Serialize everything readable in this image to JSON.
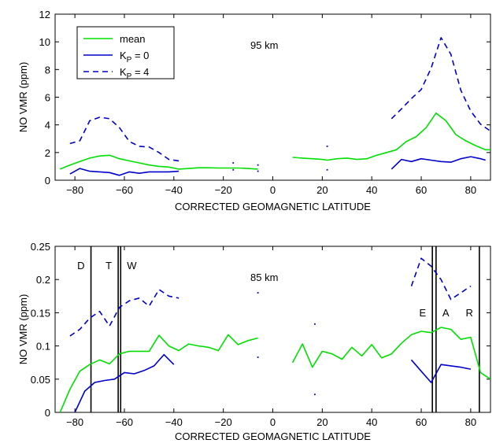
{
  "chart_data": [
    {
      "type": "line",
      "title": "",
      "annotation": "95 km",
      "xlabel": "CORRECTED GEOMAGNETIC LATITUDE",
      "ylabel": "NO VMR (ppm)",
      "xlim": [
        -88,
        88
      ],
      "ylim": [
        0,
        12
      ],
      "xticks": [
        -80,
        -60,
        -40,
        -20,
        0,
        20,
        40,
        60,
        80
      ],
      "yticks": [
        0,
        2,
        4,
        6,
        8,
        10,
        12
      ],
      "xtick_labels": [
        "−80",
        "−60",
        "−40",
        "−20",
        "0",
        "20",
        "40",
        "60",
        "80"
      ],
      "ytick_labels": [
        "0",
        "2",
        "4",
        "6",
        "8",
        "10",
        "12"
      ],
      "legend": {
        "placement": "top-left",
        "entries": [
          {
            "label": "mean",
            "series": "mean"
          },
          {
            "label": "K",
            "sub": "P",
            "suffix": " = 0",
            "series": "kp0"
          },
          {
            "label": "K",
            "sub": "P",
            "suffix": " = 4",
            "series": "kp4"
          }
        ]
      },
      "series": [
        {
          "id": "mean",
          "name": "mean",
          "color": "#00e000",
          "style": "solid",
          "segments": [
            {
              "x": [
                -86,
                -82,
                -78,
                -74,
                -70,
                -66,
                -62,
                -58,
                -54,
                -50,
                -46,
                -42,
                -38,
                -34,
                -30,
                -26,
                -22,
                -18,
                -14,
                -10,
                -6
              ],
              "y": [
                0.8,
                1.1,
                1.35,
                1.6,
                1.75,
                1.8,
                1.55,
                1.4,
                1.25,
                1.1,
                1.0,
                0.95,
                0.8,
                0.85,
                0.9,
                0.9,
                0.88,
                0.88,
                0.88,
                0.85,
                0.8
              ]
            },
            {
              "x": [
                8,
                12,
                16,
                20,
                22,
                26,
                30,
                34,
                38,
                42,
                46,
                50,
                54,
                58,
                62,
                66,
                70,
                74,
                78,
                82,
                86,
                88
              ],
              "y": [
                1.65,
                1.6,
                1.55,
                1.5,
                1.45,
                1.55,
                1.6,
                1.5,
                1.55,
                1.8,
                2.0,
                2.2,
                2.8,
                3.15,
                3.8,
                4.85,
                4.3,
                3.3,
                2.85,
                2.5,
                2.2,
                2.2
              ]
            }
          ]
        },
        {
          "id": "kp0",
          "name": "K_P = 0",
          "color": "#0000cc",
          "style": "solid",
          "segments": [
            {
              "x": [
                -82,
                -78,
                -74,
                -70,
                -66,
                -62,
                -58,
                -54,
                -50,
                -46,
                -42,
                -38
              ],
              "y": [
                0.45,
                0.85,
                0.65,
                0.6,
                0.55,
                0.35,
                0.6,
                0.5,
                0.6,
                0.6,
                0.6,
                0.65
              ]
            },
            {
              "x": [
                48,
                52,
                56,
                60,
                64,
                68,
                72,
                76,
                80,
                84,
                86
              ],
              "y": [
                0.8,
                1.5,
                1.35,
                1.55,
                1.45,
                1.35,
                1.3,
                1.55,
                1.7,
                1.55,
                1.45
              ]
            }
          ]
        },
        {
          "id": "kp4",
          "name": "K_P = 4",
          "color": "#0000cc",
          "style": "dashed",
          "segments": [
            {
              "x": [
                -82,
                -78,
                -74,
                -70,
                -66,
                -62,
                -58,
                -54,
                -50,
                -46,
                -42,
                -38
              ],
              "y": [
                2.65,
                2.85,
                4.3,
                4.55,
                4.45,
                3.8,
                2.8,
                2.45,
                2.4,
                2.0,
                1.5,
                1.4
              ]
            },
            {
              "x": [
                48,
                52,
                56,
                60,
                64,
                68,
                72,
                76,
                80,
                84,
                88
              ],
              "y": [
                4.45,
                5.15,
                5.9,
                6.55,
                8.1,
                10.3,
                9.1,
                6.5,
                5.0,
                4.05,
                3.55
              ]
            }
          ]
        }
      ],
      "scatter_points": [
        {
          "x": -16,
          "y": 1.25
        },
        {
          "x": -16,
          "y": 0.75
        },
        {
          "x": -6,
          "y": 1.1
        },
        {
          "x": -6,
          "y": 0.65
        },
        {
          "x": 22,
          "y": 2.45
        },
        {
          "x": 22,
          "y": 0.75
        }
      ],
      "grid": false
    },
    {
      "type": "line",
      "title": "",
      "annotation": "85 km",
      "xlabel": "CORRECTED GEOMAGNETIC LATITUDE",
      "ylabel": "NO VMR (ppm)",
      "xlim": [
        -88,
        88
      ],
      "ylim": [
        0,
        0.25
      ],
      "xticks": [
        -80,
        -60,
        -40,
        -20,
        0,
        20,
        40,
        60,
        80
      ],
      "yticks": [
        0,
        0.05,
        0.1,
        0.15,
        0.2,
        0.25
      ],
      "xtick_labels": [
        "−80",
        "−60",
        "−40",
        "−20",
        "0",
        "20",
        "40",
        "60",
        "80"
      ],
      "ytick_labels": [
        "0",
        "0.05",
        "0.1",
        "0.15",
        "0.2",
        "0.25"
      ],
      "series": [
        {
          "id": "mean",
          "name": "mean",
          "color": "#00e000",
          "style": "solid",
          "segments": [
            {
              "x": [
                -86,
                -82,
                -78,
                -74,
                -70,
                -66,
                -62,
                -58,
                -54,
                -50,
                -46,
                -42,
                -38,
                -34,
                -30,
                -26,
                -22,
                -18,
                -14,
                -10,
                -6
              ],
              "y": [
                0.0,
                0.035,
                0.062,
                0.072,
                0.079,
                0.073,
                0.088,
                0.092,
                0.092,
                0.092,
                0.116,
                0.1,
                0.093,
                0.103,
                0.1,
                0.098,
                0.093,
                0.117,
                0.102,
                0.108,
                0.112
              ]
            },
            {
              "x": [
                8,
                12,
                16,
                20,
                24,
                28,
                32,
                36,
                40,
                44,
                48,
                52,
                56,
                60,
                64,
                68,
                72,
                76,
                80,
                84,
                88
              ],
              "y": [
                0.075,
                0.103,
                0.068,
                0.092,
                0.088,
                0.08,
                0.098,
                0.085,
                0.102,
                0.082,
                0.088,
                0.104,
                0.117,
                0.122,
                0.12,
                0.128,
                0.125,
                0.11,
                0.113,
                0.06,
                0.05
              ]
            }
          ]
        },
        {
          "id": "kp0",
          "name": "K_P = 0",
          "color": "#0000cc",
          "style": "solid",
          "segments": [
            {
              "x": [
                -80,
                -76,
                -72,
                -68,
                -64,
                -60,
                -56,
                -52,
                -48,
                -44,
                -40
              ],
              "y": [
                0.0,
                0.032,
                0.045,
                0.048,
                0.05,
                0.06,
                0.058,
                0.063,
                0.07,
                0.087,
                0.072
              ]
            },
            {
              "x": [
                56,
                60,
                64,
                68,
                72,
                76,
                80
              ],
              "y": [
                0.079,
                0.062,
                0.045,
                0.072,
                0.07,
                0.068,
                0.065
              ]
            }
          ]
        },
        {
          "id": "kp4",
          "name": "K_P = 4",
          "color": "#0000cc",
          "style": "dashed",
          "segments": [
            {
              "x": [
                -82,
                -78,
                -74,
                -70,
                -66,
                -62,
                -58,
                -54,
                -50,
                -46,
                -42,
                -38
              ],
              "y": [
                0.115,
                0.125,
                0.142,
                0.152,
                0.13,
                0.158,
                0.168,
                0.172,
                0.16,
                0.185,
                0.175,
                0.172
              ]
            },
            {
              "x": [
                56,
                60,
                64,
                68,
                72,
                76,
                80
              ],
              "y": [
                0.19,
                0.232,
                0.22,
                0.2,
                0.17,
                0.18,
                0.19
              ]
            }
          ]
        }
      ],
      "scatter_points": [
        {
          "x": -6,
          "y": 0.18
        },
        {
          "x": -6,
          "y": 0.083
        },
        {
          "x": 17,
          "y": 0.133
        },
        {
          "x": 17,
          "y": 0.027
        }
      ],
      "vertical_lines": [
        {
          "x": -73.5,
          "label": "D",
          "label_side": "left"
        },
        {
          "x": -62.5,
          "label": "T",
          "label_side": "left"
        },
        {
          "x": -61.5,
          "label": "W",
          "label_side": "right"
        },
        {
          "x": 64.5,
          "label": "E",
          "label_side": "left"
        },
        {
          "x": 66.0,
          "label": "A",
          "label_side": "right"
        },
        {
          "x": 83.5,
          "label": "R",
          "label_side": "left"
        }
      ],
      "grid": false
    }
  ]
}
